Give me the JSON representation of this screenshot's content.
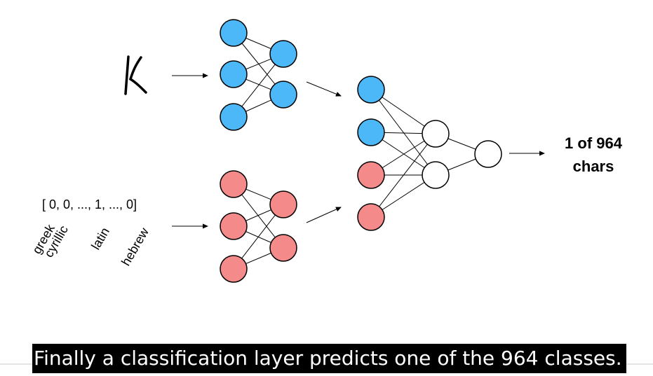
{
  "diagram": {
    "input_glyph": "K",
    "output_label_line1": "1 of 964",
    "output_label_line2": "chars",
    "alphabet_vector": "[ 0, 0, ..., 1, ..., 0]",
    "alphabet_labels": [
      "greek",
      "cyrillic",
      "latin",
      "hebrew"
    ],
    "colors": {
      "image_branch": "#4db8f7",
      "alphabet_branch": "#f58a8a",
      "hidden": "#ffffff",
      "stroke": "#000000"
    }
  },
  "subtitle": {
    "text": "Finally a classification layer predicts one of the 964 classes."
  }
}
